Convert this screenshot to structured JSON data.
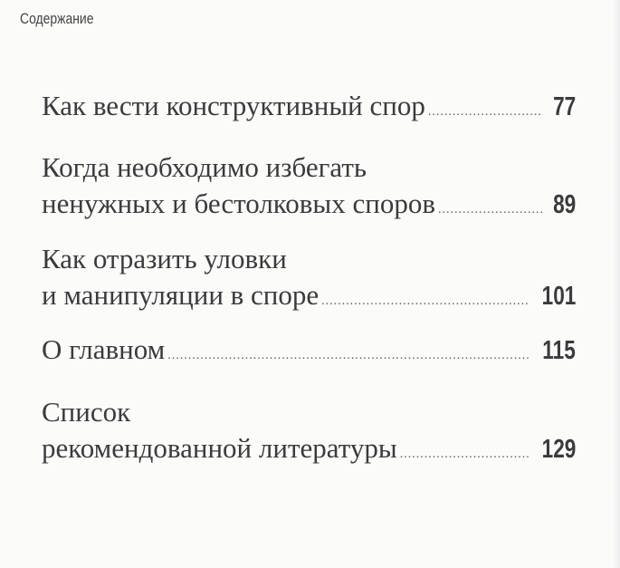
{
  "header": {
    "title": "Содержание"
  },
  "entries": [
    {
      "lines": [
        "Как вести конструктивный спор"
      ],
      "page": "77"
    },
    {
      "lines": [
        "Когда необходимо избегать",
        "ненужных и бестолковых споров"
      ],
      "page": "89"
    },
    {
      "lines": [
        "Как отразить уловки",
        "и манипуляции в споре"
      ],
      "page": "101"
    },
    {
      "lines": [
        "О главном"
      ],
      "page": "115"
    },
    {
      "lines": [
        "Список",
        "рекомендованной литературы"
      ],
      "page": "129"
    }
  ]
}
